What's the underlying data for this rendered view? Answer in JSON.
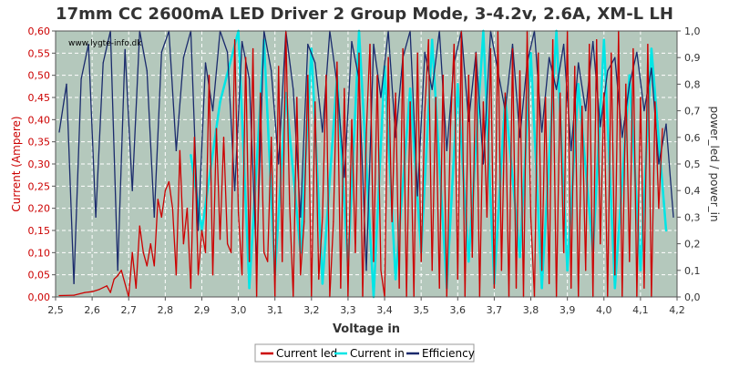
{
  "title": "17mm CC 2600mA LED Driver 2 Group Mode, 3-4.2v, 2.6A, XM-L LH",
  "watermark": "www.lygte-info.dk",
  "colors": {
    "background": "#ffffff",
    "plot_background": "#b4c8bc",
    "grid": "#ffffff",
    "current_led": "#cc0000",
    "current_in": "#00e5e5",
    "efficiency": "#1a2a6c",
    "left_axis": "#cc0000",
    "right_axis": "#333333"
  },
  "chart_data": {
    "type": "line",
    "title": "17mm CC 2600mA LED Driver 2 Group Mode, 3-4.2v, 2.6A, XM-L LH",
    "xlabel": "Voltage in",
    "ylabel_left": "Current (Ampere)",
    "ylabel_right": "power_led / power_in",
    "xlim": [
      2.5,
      4.2
    ],
    "ylim_left": [
      0,
      0.6
    ],
    "ylim_right": [
      0,
      1.0
    ],
    "x_ticks": [
      "2,5",
      "2,6",
      "2,7",
      "2,8",
      "2,9",
      "3,0",
      "3,1",
      "3,2",
      "3,3",
      "3,4",
      "3,5",
      "3,6",
      "3,7",
      "3,8",
      "3,9",
      "4,0",
      "4,1",
      "4,2"
    ],
    "y_left_ticks": [
      "0,00",
      "0,05",
      "0,10",
      "0,15",
      "0,20",
      "0,25",
      "0,30",
      "0,35",
      "0,40",
      "0,45",
      "0,50",
      "0,55",
      "0,60"
    ],
    "y_right_ticks": [
      "0,0",
      "0,1",
      "0,2",
      "0,3",
      "0,4",
      "0,5",
      "0,6",
      "0,7",
      "0,8",
      "0,9",
      "1,0"
    ],
    "grid": true,
    "legend_position": "bottom-center",
    "series": [
      {
        "name": "Current led",
        "axis": "left",
        "x": [
          2.51,
          2.55,
          2.58,
          2.6,
          2.62,
          2.64,
          2.65,
          2.66,
          2.67,
          2.68,
          2.7,
          2.71,
          2.72,
          2.73,
          2.74,
          2.75,
          2.76,
          2.77,
          2.78,
          2.79,
          2.8,
          2.81,
          2.82,
          2.83,
          2.84,
          2.85,
          2.86,
          2.87,
          2.88,
          2.89,
          2.9,
          2.91,
          2.92,
          2.93,
          2.94,
          2.95,
          2.96,
          2.97,
          2.98,
          2.99,
          3.0,
          3.01,
          3.02,
          3.03,
          3.04,
          3.05,
          3.06,
          3.07,
          3.08,
          3.09,
          3.1,
          3.11,
          3.12,
          3.13,
          3.14,
          3.15,
          3.16,
          3.17,
          3.18,
          3.19,
          3.2,
          3.21,
          3.22,
          3.23,
          3.24,
          3.25,
          3.26,
          3.27,
          3.28,
          3.29,
          3.3,
          3.31,
          3.32,
          3.33,
          3.34,
          3.35,
          3.36,
          3.37,
          3.38,
          3.39,
          3.4,
          3.41,
          3.42,
          3.43,
          3.44,
          3.45,
          3.46,
          3.47,
          3.48,
          3.49,
          3.5,
          3.51,
          3.52,
          3.53,
          3.54,
          3.55,
          3.56,
          3.57,
          3.58,
          3.59,
          3.6,
          3.61,
          3.62,
          3.63,
          3.64,
          3.65,
          3.66,
          3.67,
          3.68,
          3.69,
          3.7,
          3.71,
          3.72,
          3.73,
          3.74,
          3.75,
          3.76,
          3.77,
          3.78,
          3.79,
          3.8,
          3.81,
          3.82,
          3.83,
          3.84,
          3.85,
          3.86,
          3.87,
          3.88,
          3.89,
          3.9,
          3.91,
          3.92,
          3.93,
          3.94,
          3.95,
          3.96,
          3.97,
          3.98,
          3.99,
          4.0,
          4.01,
          4.02,
          4.03,
          4.04,
          4.05,
          4.06,
          4.07,
          4.08,
          4.09,
          4.1,
          4.11,
          4.12,
          4.13,
          4.14,
          4.15,
          4.16
        ],
        "values": [
          0.003,
          0.004,
          0.01,
          0.012,
          0.017,
          0.025,
          0.01,
          0.04,
          0.048,
          0.06,
          0.0,
          0.1,
          0.02,
          0.16,
          0.1,
          0.07,
          0.12,
          0.07,
          0.22,
          0.18,
          0.24,
          0.26,
          0.2,
          0.05,
          0.33,
          0.12,
          0.2,
          0.02,
          0.36,
          0.05,
          0.15,
          0.1,
          0.5,
          0.05,
          0.38,
          0.13,
          0.36,
          0.12,
          0.1,
          0.58,
          0.19,
          0.05,
          0.54,
          0.08,
          0.56,
          0.0,
          0.46,
          0.1,
          0.08,
          0.36,
          0.0,
          0.52,
          0.08,
          0.6,
          0.21,
          0.0,
          0.45,
          0.05,
          0.17,
          0.5,
          0.0,
          0.44,
          0.04,
          0.18,
          0.5,
          0.0,
          0.17,
          0.53,
          0.02,
          0.47,
          0.0,
          0.4,
          0.1,
          0.55,
          0.0,
          0.37,
          0.57,
          0.08,
          0.5,
          0.06,
          0.0,
          0.54,
          0.17,
          0.46,
          0.02,
          0.56,
          0.0,
          0.44,
          0.0,
          0.55,
          0.08,
          0.42,
          0.58,
          0.06,
          0.45,
          0.02,
          0.5,
          0.0,
          0.38,
          0.57,
          0.04,
          0.6,
          0.0,
          0.5,
          0.09,
          0.55,
          0.0,
          0.44,
          0.18,
          0.56,
          0.02,
          0.6,
          0.06,
          0.46,
          0.0,
          0.56,
          0.02,
          0.51,
          0.0,
          0.6,
          0.18,
          0.0,
          0.55,
          0.06,
          0.45,
          0.03,
          0.58,
          0.0,
          0.46,
          0.1,
          0.6,
          0.02,
          0.52,
          0.0,
          0.43,
          0.06,
          0.57,
          0.0,
          0.58,
          0.12,
          0.46,
          0.0,
          0.55,
          0.05,
          0.6,
          0.0,
          0.48,
          0.08,
          0.56,
          0.0,
          0.45,
          0.02,
          0.57,
          0.0,
          0.44,
          0.2,
          0.38
        ]
      },
      {
        "name": "Current in",
        "axis": "left",
        "x": [
          2.87,
          2.9,
          2.95,
          3.0,
          3.03,
          3.07,
          3.1,
          3.13,
          3.17,
          3.2,
          3.23,
          3.27,
          3.3,
          3.33,
          3.37,
          3.4,
          3.43,
          3.47,
          3.5,
          3.53,
          3.57,
          3.6,
          3.63,
          3.67,
          3.7,
          3.73,
          3.77,
          3.8,
          3.83,
          3.87,
          3.9,
          3.93,
          3.97,
          4.0,
          4.03,
          4.07,
          4.1,
          4.13,
          4.17
        ],
        "values": [
          0.32,
          0.15,
          0.44,
          0.6,
          0.02,
          0.58,
          0.05,
          0.46,
          0.1,
          0.56,
          0.03,
          0.5,
          0.07,
          0.6,
          0.0,
          0.52,
          0.04,
          0.47,
          0.1,
          0.58,
          0.02,
          0.48,
          0.08,
          0.6,
          0.03,
          0.45,
          0.09,
          0.55,
          0.02,
          0.6,
          0.06,
          0.48,
          0.1,
          0.58,
          0.02,
          0.5,
          0.06,
          0.56,
          0.15
        ]
      },
      {
        "name": "Efficiency",
        "axis": "right",
        "x": [
          2.51,
          2.53,
          2.55,
          2.57,
          2.59,
          2.61,
          2.63,
          2.65,
          2.67,
          2.69,
          2.71,
          2.73,
          2.75,
          2.77,
          2.79,
          2.81,
          2.83,
          2.85,
          2.87,
          2.89,
          2.91,
          2.93,
          2.95,
          2.97,
          2.99,
          3.01,
          3.03,
          3.05,
          3.07,
          3.09,
          3.11,
          3.13,
          3.15,
          3.17,
          3.19,
          3.21,
          3.23,
          3.25,
          3.27,
          3.29,
          3.31,
          3.33,
          3.35,
          3.37,
          3.39,
          3.41,
          3.43,
          3.45,
          3.47,
          3.49,
          3.51,
          3.53,
          3.55,
          3.57,
          3.59,
          3.61,
          3.63,
          3.65,
          3.67,
          3.69,
          3.71,
          3.73,
          3.75,
          3.77,
          3.79,
          3.81,
          3.83,
          3.85,
          3.87,
          3.89,
          3.91,
          3.93,
          3.95,
          3.97,
          3.99,
          4.01,
          4.03,
          4.05,
          4.07,
          4.09,
          4.11,
          4.13,
          4.15,
          4.17,
          4.19
        ],
        "values": [
          0.62,
          0.8,
          0.05,
          0.82,
          0.95,
          0.3,
          0.88,
          1.0,
          0.1,
          0.93,
          0.4,
          1.0,
          0.85,
          0.3,
          0.92,
          1.0,
          0.55,
          0.9,
          1.0,
          0.25,
          0.88,
          0.7,
          1.0,
          0.92,
          0.4,
          0.96,
          0.82,
          0.12,
          1.0,
          0.85,
          0.5,
          1.0,
          0.78,
          0.3,
          0.95,
          0.88,
          0.62,
          1.0,
          0.8,
          0.45,
          0.96,
          0.82,
          0.1,
          0.95,
          0.75,
          1.0,
          0.6,
          0.9,
          1.0,
          0.38,
          0.92,
          0.78,
          1.0,
          0.55,
          0.88,
          1.0,
          0.66,
          0.92,
          0.5,
          1.0,
          0.85,
          0.7,
          0.95,
          0.6,
          0.88,
          1.0,
          0.62,
          0.9,
          0.78,
          0.95,
          0.55,
          0.88,
          0.7,
          0.96,
          0.64,
          0.85,
          0.9,
          0.6,
          0.8,
          0.92,
          0.7,
          0.86,
          0.5,
          0.65,
          0.3
        ]
      }
    ]
  }
}
